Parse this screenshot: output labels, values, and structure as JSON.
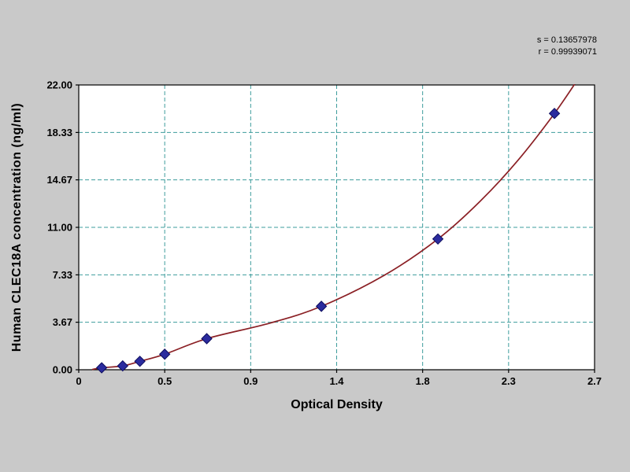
{
  "chart_data": {
    "type": "scatter",
    "title": "",
    "xlabel": "Optical Density",
    "ylabel": "Human CLEC18A concentration (ng/ml)",
    "xlim": [
      0,
      2.7
    ],
    "ylim": [
      0,
      22.0
    ],
    "x_ticks": [
      0,
      0.45,
      0.9,
      1.35,
      1.8,
      2.25,
      2.7
    ],
    "x_tick_labels": [
      "0",
      "0.5",
      "0.9",
      "1.4",
      "1.8",
      "2.3",
      "2.7"
    ],
    "y_ticks": [
      0,
      3.67,
      7.33,
      11.0,
      14.67,
      18.33,
      22.0
    ],
    "y_tick_labels": [
      "0.00",
      "3.67",
      "7.33",
      "11.00",
      "14.67",
      "18.33",
      "22.00"
    ],
    "grid": true,
    "legend": "none",
    "points": [
      [
        0.12,
        0.15
      ],
      [
        0.23,
        0.3
      ],
      [
        0.32,
        0.65
      ],
      [
        0.45,
        1.2
      ],
      [
        0.67,
        2.4
      ],
      [
        1.27,
        4.9
      ],
      [
        1.88,
        10.1
      ],
      [
        2.49,
        19.8
      ]
    ],
    "fit_curve": [
      [
        0.07,
        0.02
      ],
      [
        0.12,
        0.15
      ],
      [
        0.23,
        0.3
      ],
      [
        0.32,
        0.65
      ],
      [
        0.45,
        1.2
      ],
      [
        0.67,
        2.4
      ],
      [
        1.0,
        3.6
      ],
      [
        1.27,
        4.9
      ],
      [
        1.6,
        7.3
      ],
      [
        1.88,
        10.1
      ],
      [
        2.1,
        13.0
      ],
      [
        2.3,
        16.2
      ],
      [
        2.49,
        19.8
      ],
      [
        2.62,
        22.6
      ]
    ],
    "annotations": [
      "s = 0.13657978",
      "r = 0.99939071"
    ],
    "colors": {
      "curve": "#8b2025",
      "point": "#2b2b9e",
      "point_edge": "#0d0d5e",
      "grid": "#3d9c9c",
      "axis": "#000000",
      "plot_bg": "#ffffff",
      "page_bg": "#c9c9c9",
      "text": "#000000"
    }
  }
}
